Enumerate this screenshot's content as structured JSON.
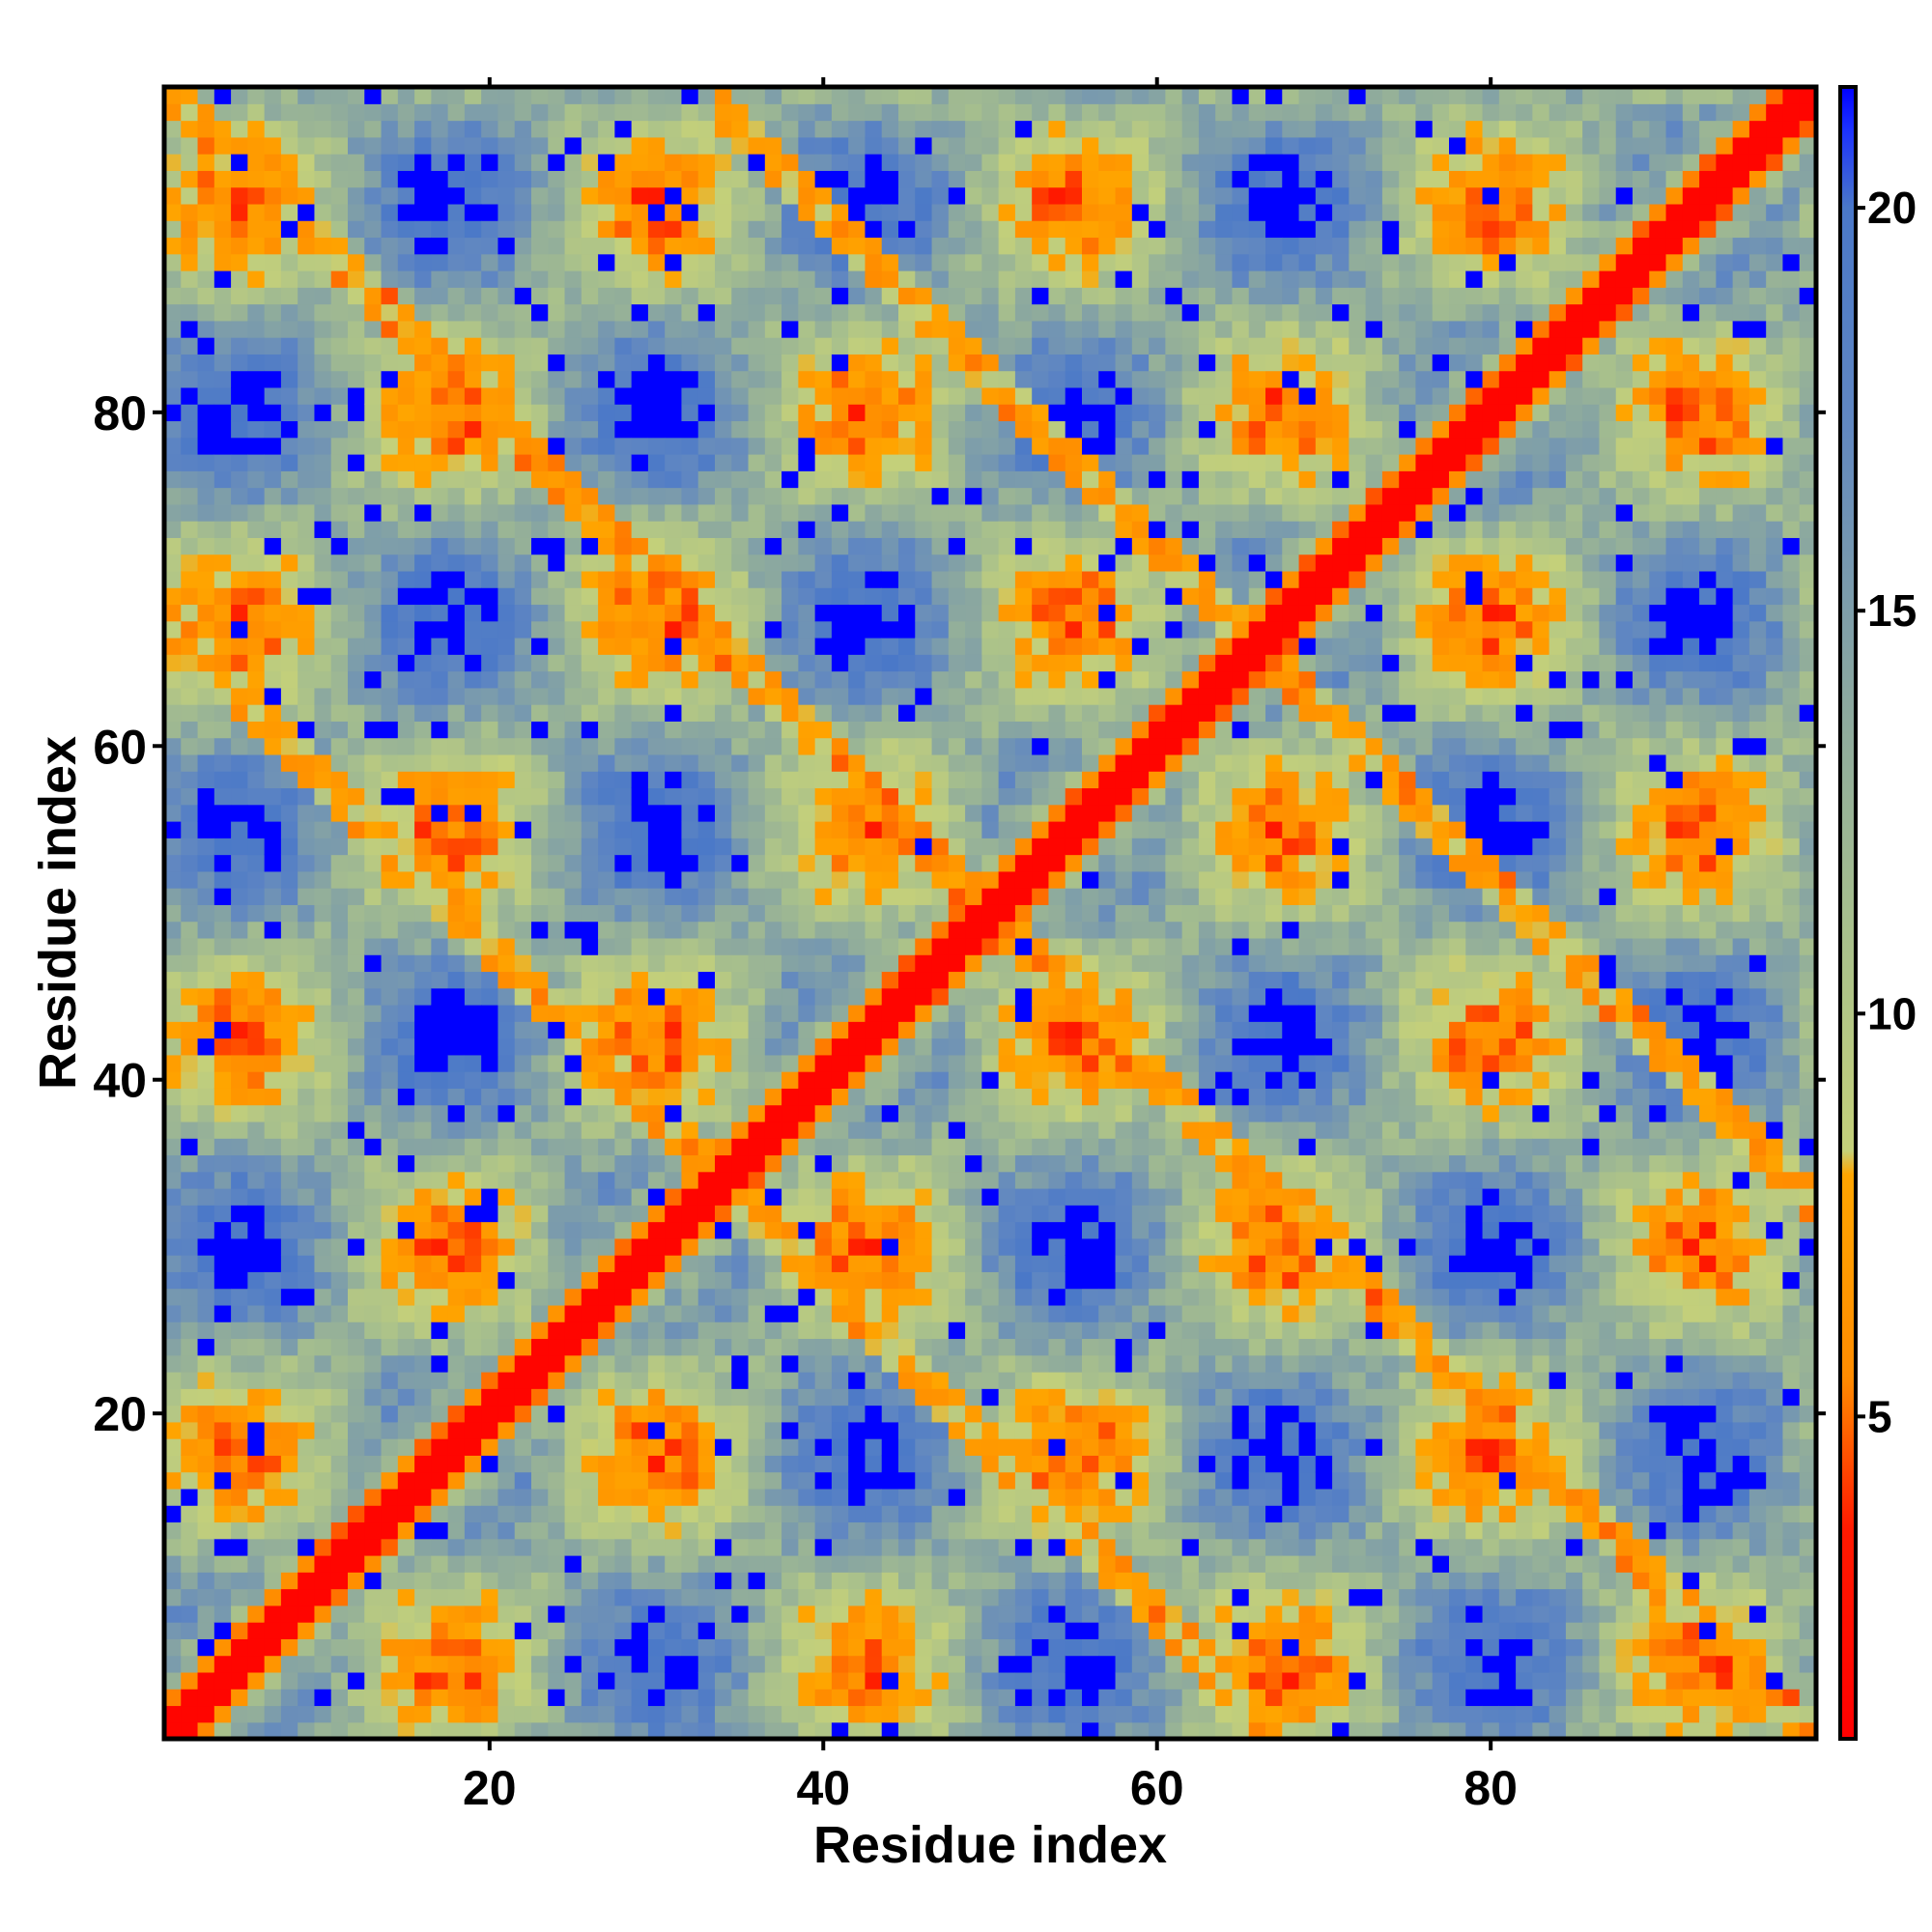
{
  "chart_data": {
    "type": "heatmap",
    "title": "",
    "xlabel": "Residue index",
    "ylabel": "Residue index",
    "x_range": [
      1,
      99
    ],
    "y_range": [
      1,
      99
    ],
    "xticks": [
      20,
      40,
      60,
      80
    ],
    "yticks": [
      20,
      40,
      60,
      80
    ],
    "colorbar": {
      "ticks": [
        5,
        10,
        15,
        20
      ],
      "range": [
        1,
        21.5
      ],
      "stops": [
        {
          "value": 1.0,
          "color": "#ff0000"
        },
        {
          "value": 3.6,
          "color": "#ff1a00"
        },
        {
          "value": 5.5,
          "color": "#ff8c00"
        },
        {
          "value": 8.0,
          "color": "#ffa500"
        },
        {
          "value": 8.3,
          "color": "#c4d07a"
        },
        {
          "value": 11.0,
          "color": "#a8c08c"
        },
        {
          "value": 14.0,
          "color": "#8aa7a0"
        },
        {
          "value": 17.5,
          "color": "#5f86c2"
        },
        {
          "value": 20.0,
          "color": "#4a78c8"
        },
        {
          "value": 21.0,
          "color": "#1a2fff"
        },
        {
          "value": 21.5,
          "color": "#0000ff"
        }
      ]
    },
    "colors": {
      "contact": "#ff0000",
      "near": "#ffa500",
      "mid": "#a8c08c",
      "far": "#6b8fc0",
      "none": "#0000ff"
    },
    "description_of_values": "Residue-residue distance map (values ~1-21). Main diagonal = contact (red). Two off-diagonal bands (orange) along perpendicular repeats. Blue blocks = distances above 20."
  }
}
